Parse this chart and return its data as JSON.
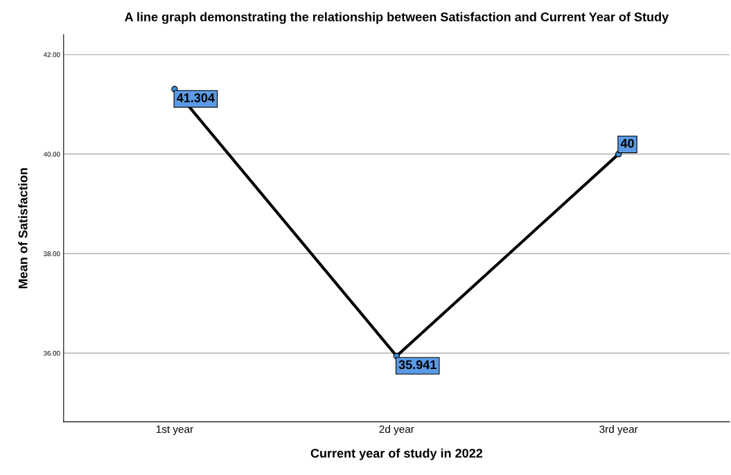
{
  "chart_data": {
    "type": "line",
    "title": "A line graph demonstrating the relationship between Satisfaction and Current Year of Study",
    "xlabel": "Current year of study in 2022",
    "ylabel": "Mean of Satisfaction",
    "categories": [
      "1st year",
      "2d year",
      "3rd year"
    ],
    "series": [
      {
        "color": "#000000",
        "values": [
          41.304,
          35.941,
          40
        ]
      }
    ],
    "value_labels": [
      "41.304",
      "35.941",
      "40"
    ],
    "ylim": [
      34.62,
      42.4
    ],
    "yticks": [
      {
        "value": 36,
        "label": "36.00"
      },
      {
        "value": 38,
        "label": "38.00"
      },
      {
        "value": 40,
        "label": "40.00"
      },
      {
        "value": 42,
        "label": "42.00"
      }
    ],
    "grid": "y",
    "marker": "circle",
    "line_style": "solid"
  }
}
